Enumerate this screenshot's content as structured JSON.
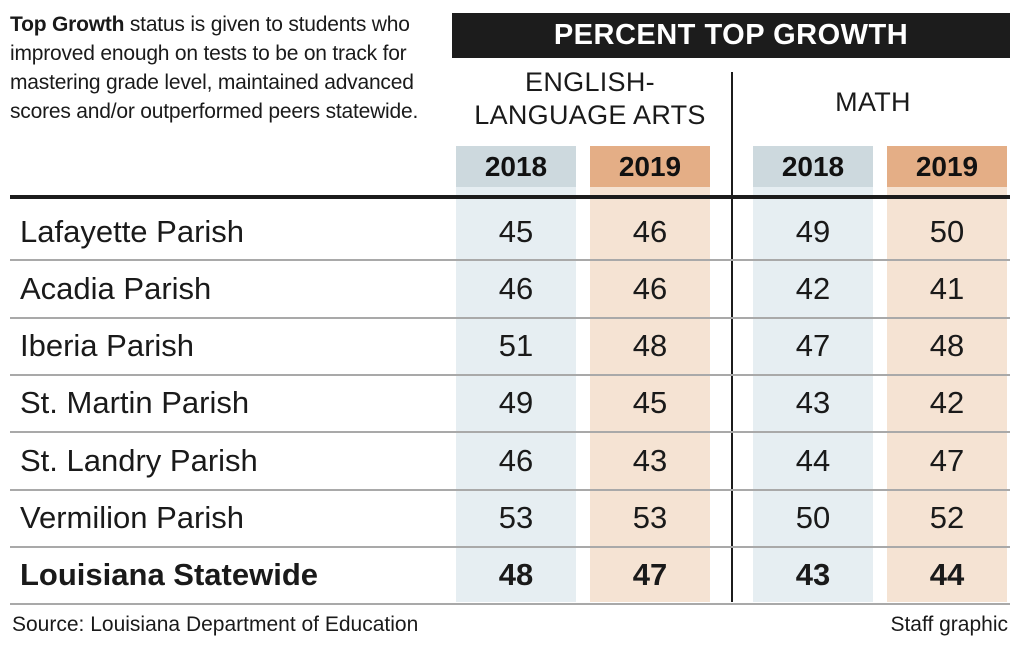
{
  "intro": {
    "lead": "Top Growth",
    "text": " status is given to students who improved enough on tests to be on track for mastering grade level, maintained advanced scores and/or outperformed peers statewide."
  },
  "chart_data": {
    "type": "table",
    "title": "PERCENT TOP GROWTH",
    "groups": [
      {
        "name": "ENGLISH-\nLANGUAGE ARTS",
        "years": [
          "2018",
          "2019"
        ]
      },
      {
        "name": "MATH",
        "years": [
          "2018",
          "2019"
        ]
      }
    ],
    "columns": [
      "ELA 2018",
      "ELA 2019",
      "Math 2018",
      "Math 2019"
    ],
    "rows": [
      {
        "name": "Lafayette Parish",
        "values": [
          45,
          46,
          49,
          50
        ]
      },
      {
        "name": "Acadia Parish",
        "values": [
          46,
          46,
          42,
          41
        ]
      },
      {
        "name": "Iberia Parish",
        "values": [
          51,
          48,
          47,
          48
        ]
      },
      {
        "name": "St. Martin Parish",
        "values": [
          49,
          45,
          43,
          42
        ]
      },
      {
        "name": "St. Landry Parish",
        "values": [
          46,
          43,
          44,
          47
        ]
      },
      {
        "name": "Vermilion Parish",
        "values": [
          53,
          53,
          50,
          52
        ]
      },
      {
        "name": "Louisiana Statewide",
        "values": [
          48,
          47,
          43,
          44
        ],
        "bold": true
      }
    ],
    "colors": {
      "year_2018_header": "#cdd9de",
      "year_2019_header": "#e4ae86",
      "year_2018_column": "#e6eef2",
      "year_2019_column": "#f5e3d3",
      "banner": "#1c1c1c"
    }
  },
  "footer": {
    "source": "Source: Louisiana Department of Education",
    "credit": "Staff graphic"
  }
}
